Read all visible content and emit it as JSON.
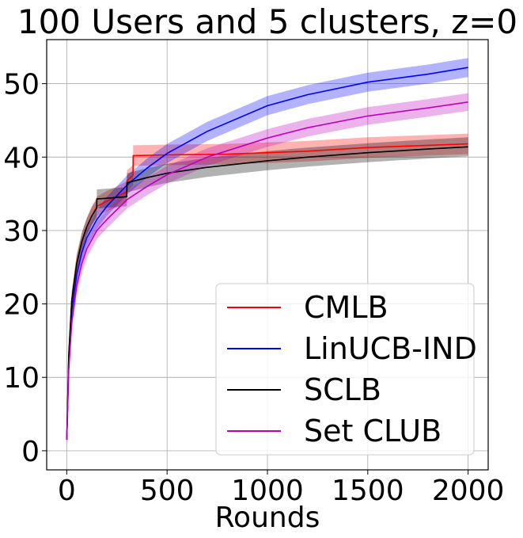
{
  "chart_data": {
    "type": "line",
    "title": "100 Users and 5 clusters, z=0",
    "xlabel": "Rounds",
    "ylabel": "",
    "xlim": [
      -100,
      2100
    ],
    "ylim": [
      -2.6,
      56
    ],
    "x_ticks": [
      0,
      500,
      1000,
      1500,
      2000
    ],
    "x_tick_labels": [
      "0",
      "500",
      "1000",
      "1500",
      "2000"
    ],
    "y_ticks": [
      0,
      10,
      20,
      30,
      40,
      50
    ],
    "y_tick_labels": [
      "0",
      "10",
      "20",
      "30",
      "40",
      "50"
    ],
    "grid": true,
    "legend_position": "lower-right",
    "series": [
      {
        "name": "CMLB",
        "color": "#ff0000",
        "x": [
          0,
          10,
          25,
          50,
          75,
          100,
          125,
          149,
          150,
          200,
          250,
          299,
          300,
          330,
          331,
          500,
          800,
          1000,
          1200,
          1500,
          1800,
          2000
        ],
        "y": [
          1.5,
          13,
          20.5,
          25.5,
          28.5,
          30.5,
          32,
          33.2,
          33.3,
          34,
          34.6,
          35.3,
          36.8,
          37.5,
          40.2,
          40.3,
          40.4,
          40.6,
          40.8,
          41.3,
          41.6,
          41.8
        ],
        "band": [
          0.5,
          1.2,
          1.2,
          1.2,
          1.2,
          1.2,
          1.3,
          1.3,
          1.3,
          1.4,
          1.4,
          1.4,
          1.4,
          1.4,
          1.4,
          1.4,
          1.4,
          1.4,
          1.4,
          1.4,
          1.4,
          1.4
        ]
      },
      {
        "name": "LinUCB-IND",
        "color": "#0000ff",
        "x": [
          0,
          10,
          25,
          50,
          75,
          100,
          150,
          200,
          300,
          400,
          500,
          700,
          1000,
          1200,
          1500,
          1800,
          2000
        ],
        "y": [
          1.5,
          12,
          19,
          24,
          27,
          29,
          31.5,
          33.3,
          36.2,
          38.5,
          40.5,
          43.5,
          47,
          48.5,
          50.2,
          51.3,
          52.2
        ],
        "band": [
          0.5,
          1.0,
          1.1,
          1.2,
          1.2,
          1.2,
          1.3,
          1.3,
          1.3,
          1.3,
          1.3,
          1.3,
          1.3,
          1.3,
          1.3,
          1.3,
          1.3
        ]
      },
      {
        "name": "SCLB",
        "color": "#000000",
        "x": [
          0,
          10,
          25,
          50,
          75,
          100,
          125,
          149,
          150,
          200,
          250,
          299,
          300,
          400,
          500,
          700,
          1000,
          1200,
          1500,
          1800,
          2000
        ],
        "y": [
          1.5,
          13,
          20.5,
          25.5,
          28.5,
          30.5,
          32,
          33.0,
          34.3,
          34.4,
          34.5,
          34.6,
          36.5,
          37.2,
          37.8,
          38.6,
          39.5,
          40.0,
          40.6,
          41.1,
          41.4
        ],
        "band": [
          0.5,
          1.2,
          1.2,
          1.2,
          1.2,
          1.2,
          1.2,
          1.2,
          1.3,
          1.3,
          1.3,
          1.3,
          1.3,
          1.3,
          1.3,
          1.3,
          1.3,
          1.3,
          1.3,
          1.3,
          1.3
        ]
      },
      {
        "name": "Set CLUB",
        "color": "#bf00bf",
        "x": [
          0,
          10,
          25,
          50,
          75,
          100,
          150,
          200,
          300,
          400,
          500,
          700,
          1000,
          1200,
          1500,
          1800,
          2000
        ],
        "y": [
          1.5,
          11,
          17.5,
          22.5,
          25.5,
          27.5,
          30,
          31.5,
          34.2,
          36,
          37.6,
          40,
          42.6,
          44,
          45.6,
          46.7,
          47.5
        ],
        "band": [
          0.5,
          1.0,
          1.1,
          1.2,
          1.2,
          1.2,
          1.2,
          1.2,
          1.2,
          1.2,
          1.2,
          1.2,
          1.2,
          1.2,
          1.2,
          1.2,
          1.2
        ]
      }
    ]
  }
}
